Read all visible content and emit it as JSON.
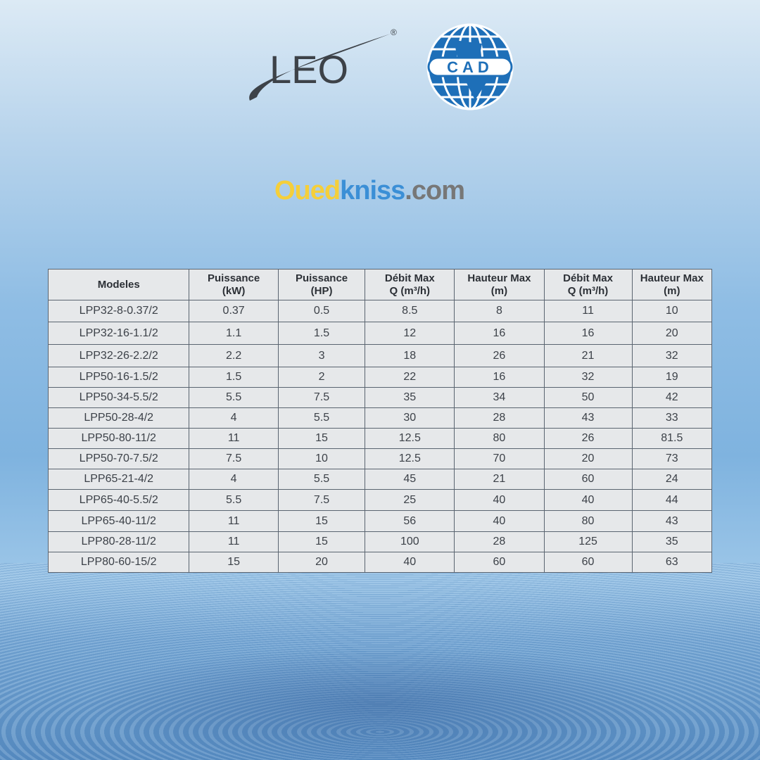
{
  "logos": {
    "left": "LEO",
    "left_mark": "®",
    "right": "CAD"
  },
  "watermark": {
    "part1": "Oued",
    "part2": "kniss",
    "part3": ".com"
  },
  "table": {
    "headers": [
      [
        "Modeles",
        ""
      ],
      [
        "Puissance",
        "(kW)"
      ],
      [
        "Puissance",
        "(HP)"
      ],
      [
        "Débit Max",
        "Q (m³/h)"
      ],
      [
        "Hauteur Max",
        "(m)"
      ],
      [
        "Débit Max",
        "Q (m³/h)"
      ],
      [
        "Hauteur Max",
        "(m)"
      ]
    ],
    "rows": [
      [
        "LPP32-8-0.37/2",
        "0.37",
        "0.5",
        "8.5",
        "8",
        "11",
        "10"
      ],
      [
        "LPP32-16-1.1/2",
        "1.1",
        "1.5",
        "12",
        "16",
        "16",
        "20"
      ],
      [
        "LPP32-26-2.2/2",
        "2.2",
        "3",
        "18",
        "26",
        "21",
        "32"
      ],
      [
        "LPP50-16-1.5/2",
        "1.5",
        "2",
        "22",
        "16",
        "32",
        "19"
      ],
      [
        "LPP50-34-5.5/2",
        "5.5",
        "7.5",
        "35",
        "34",
        "50",
        "42"
      ],
      [
        "LPP50-28-4/2",
        "4",
        "5.5",
        "30",
        "28",
        "43",
        "33"
      ],
      [
        "LPP50-80-11/2",
        "11",
        "15",
        "12.5",
        "80",
        "26",
        "81.5"
      ],
      [
        "LPP50-70-7.5/2",
        "7.5",
        "10",
        "12.5",
        "70",
        "20",
        "73"
      ],
      [
        "LPP65-21-4/2",
        "4",
        "5.5",
        "45",
        "21",
        "60",
        "24"
      ],
      [
        "LPP65-40-5.5/2",
        "5.5",
        "7.5",
        "25",
        "40",
        "40",
        "44"
      ],
      [
        "LPP65-40-11/2",
        "11",
        "15",
        "56",
        "40",
        "80",
        "43"
      ],
      [
        "LPP80-28-11/2",
        "11",
        "15",
        "100",
        "28",
        "125",
        "35"
      ],
      [
        "LPP80-60-15/2",
        "15",
        "20",
        "40",
        "60",
        "60",
        "63"
      ]
    ]
  }
}
